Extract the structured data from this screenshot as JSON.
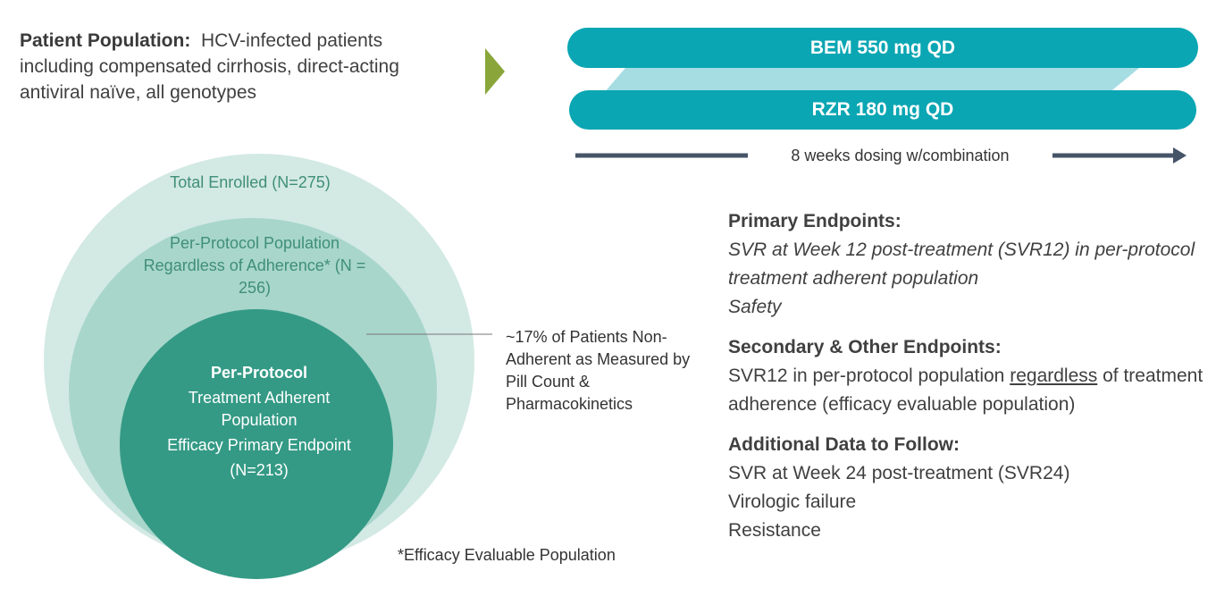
{
  "population": {
    "label": "Patient Population:",
    "text": "HCV-infected patients including compensated cirrhosis, direct-acting antiviral naïve, all genotypes"
  },
  "dosing": {
    "drug1": "BEM 550 mg QD",
    "drug2": "RZR 180 mg QD",
    "duration": "8 weeks dosing w/combination"
  },
  "venn": {
    "outer": "Total Enrolled (N=275)",
    "middle": "Per-Protocol Population Regardless of Adherence* (N = 256)",
    "inner_title": "Per-Protocol",
    "inner_line1": "Treatment Adherent Population",
    "inner_line2": "Efficacy Primary Endpoint",
    "inner_n": "(N=213)",
    "callout": "~17% of Patients Non-Adherent as Measured by Pill Count & Pharmacokinetics",
    "footnote": "*Efficacy Evaluable Population"
  },
  "endpoints": {
    "primary_head": "Primary Endpoints:",
    "primary_1": "SVR at Week 12 post-treatment (SVR12) in per-protocol treatment adherent population",
    "primary_2": "Safety",
    "secondary_head": "Secondary & Other Endpoints:",
    "secondary_pre": "SVR12 in per-protocol population",
    "secondary_u": "regardless",
    "secondary_post": "of treatment adherence (efficacy evaluable population)",
    "additional_head": "Additional Data to Follow:",
    "additional": [
      "SVR at Week 24 post-treatment (SVR24)",
      "Virologic failure",
      "Resistance"
    ]
  },
  "colors": {
    "teal": "#0aa6b3",
    "teal_light": "#a5dde3",
    "green_arrow": "#8aa63a",
    "venn_outer": "#d3e9e4",
    "venn_middle": "#a8d6cb",
    "venn_inner": "#349a85",
    "timeline": "#465468"
  }
}
